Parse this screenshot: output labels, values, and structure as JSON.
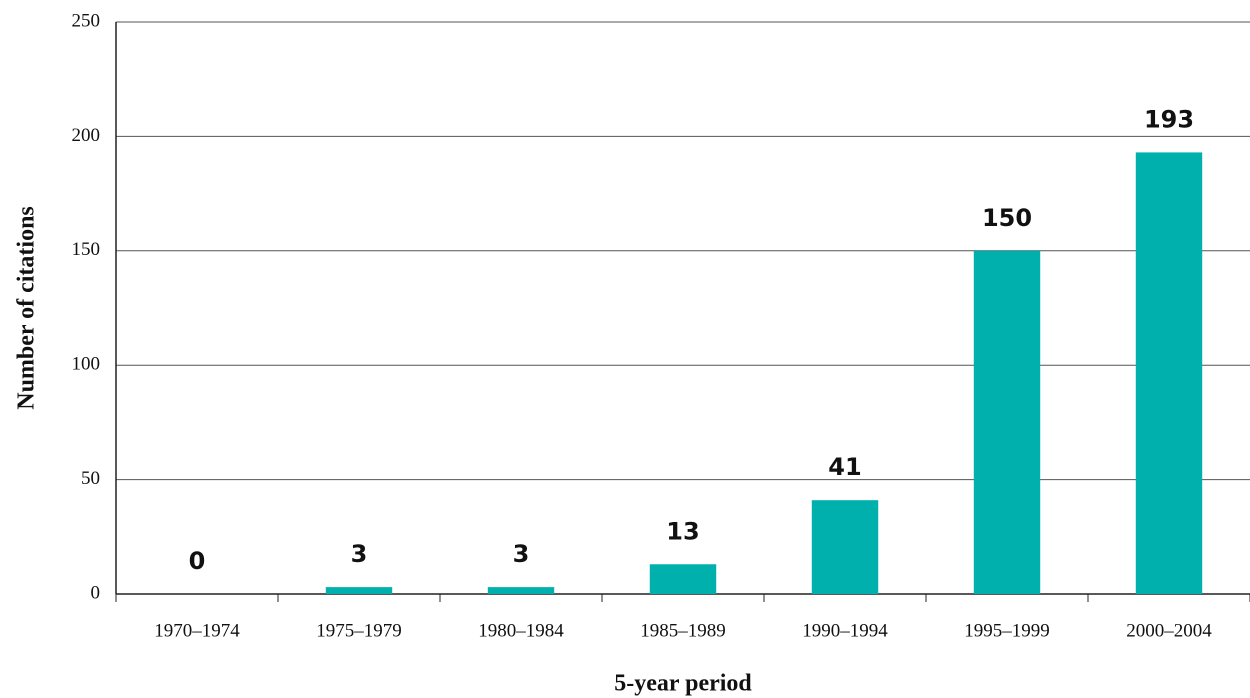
{
  "chart_data": {
    "type": "bar",
    "x_label": "5-year period",
    "y_label": "Number of citations",
    "categories": [
      "1970–1974",
      "1975–1979",
      "1980–1984",
      "1985–1989",
      "1990–1994",
      "1995–1999",
      "2000–2004"
    ],
    "values": [
      0,
      3,
      3,
      13,
      41,
      150,
      193
    ],
    "color": "#00b0ad",
    "ylim": [
      0,
      250
    ],
    "yticks": [
      0,
      50,
      100,
      150,
      200,
      250
    ],
    "grid": true
  }
}
